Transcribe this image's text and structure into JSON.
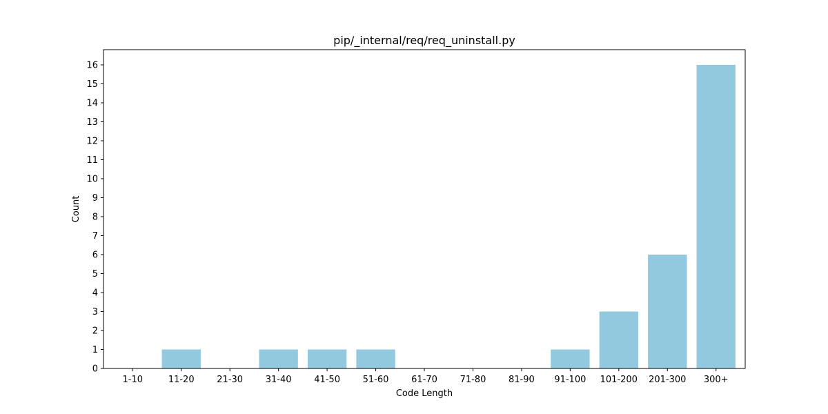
{
  "chart_data": {
    "type": "bar",
    "title": "pip/_internal/req/req_uninstall.py",
    "xlabel": "Code Length",
    "ylabel": "Count",
    "categories": [
      "1-10",
      "11-20",
      "21-30",
      "31-40",
      "41-50",
      "51-60",
      "61-70",
      "71-80",
      "81-90",
      "91-100",
      "101-200",
      "201-300",
      "300+"
    ],
    "values": [
      0,
      1,
      0,
      1,
      1,
      1,
      0,
      0,
      0,
      1,
      3,
      6,
      16
    ],
    "ylim": [
      0,
      16.8
    ],
    "yticks": [
      0,
      1,
      2,
      3,
      4,
      5,
      6,
      7,
      8,
      9,
      10,
      11,
      12,
      13,
      14,
      15,
      16
    ],
    "bar_color": "#92c9de",
    "grid": false,
    "legend": "none"
  }
}
